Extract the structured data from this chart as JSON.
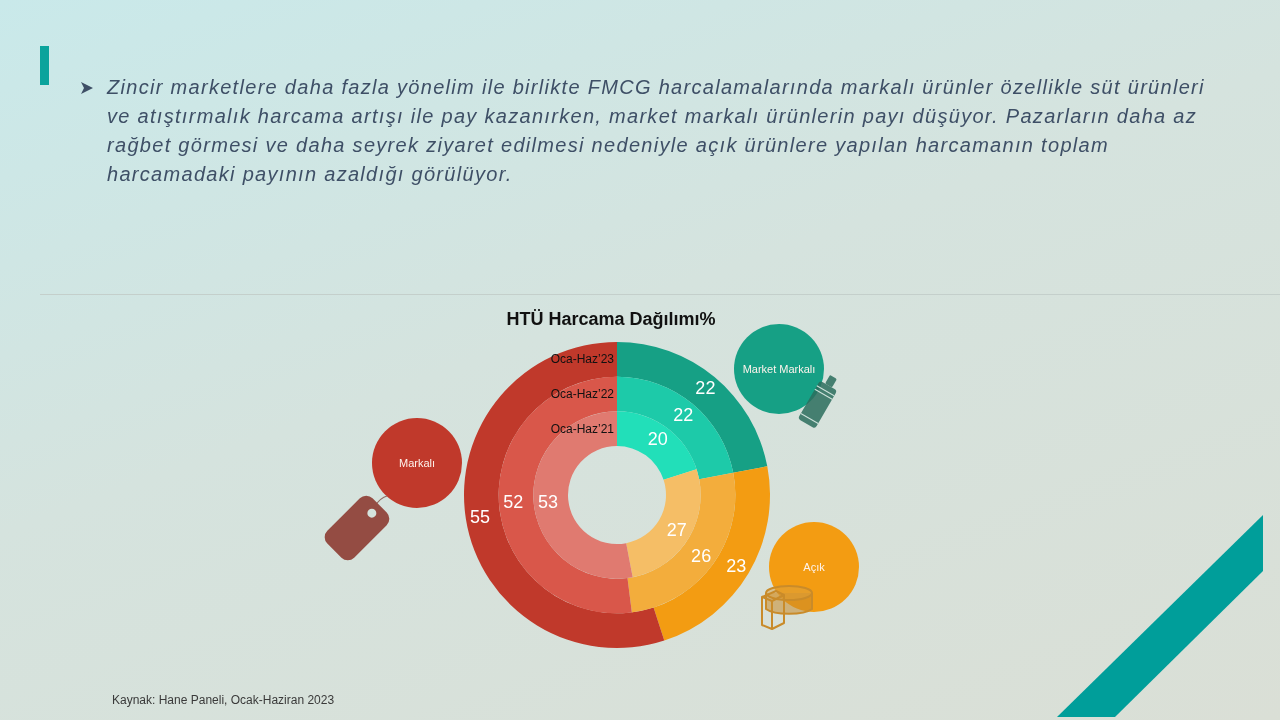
{
  "chart_data": {
    "type": "donut",
    "title": "HTÜ Harcama Dağılımı%",
    "categories": [
      "Market Markalı",
      "Açık",
      "Markalı"
    ],
    "series": [
      {
        "name": "Oca-Haz’23",
        "colors": [
          "#16a085",
          "#f39c12",
          "#c0392b"
        ],
        "values": [
          22,
          23,
          55
        ]
      },
      {
        "name": "Oca-Haz’22",
        "colors": [
          "#1dcaa9",
          "#f3ad3c",
          "#d9574a"
        ],
        "values": [
          22,
          26,
          52
        ]
      },
      {
        "name": "Oca-Haz’21",
        "colors": [
          "#22dfb9",
          "#f5be66",
          "#e07a70"
        ],
        "values": [
          20,
          27,
          53
        ]
      }
    ],
    "data_labels": true,
    "annotations": [
      "Zincir marketlere daha fazla yönelim ile birlikte FMCG harcalamalarında markalı ürünler özellikle süt ürünleri ve atıştırmalık harcama artışı ile pay kazanırken, market markalı ürünlerin payı düşüyor. Pazarların daha az rağbet görmesi ve daha seyrek ziyaret edilmesi nedeniyle açık ürünlere yapılan harcamanın toplam harcamadaki payının azaldığı görülüyor.",
      "Kaynak: Hane Paneli, Ocak-Haziran 2023"
    ]
  }
}
